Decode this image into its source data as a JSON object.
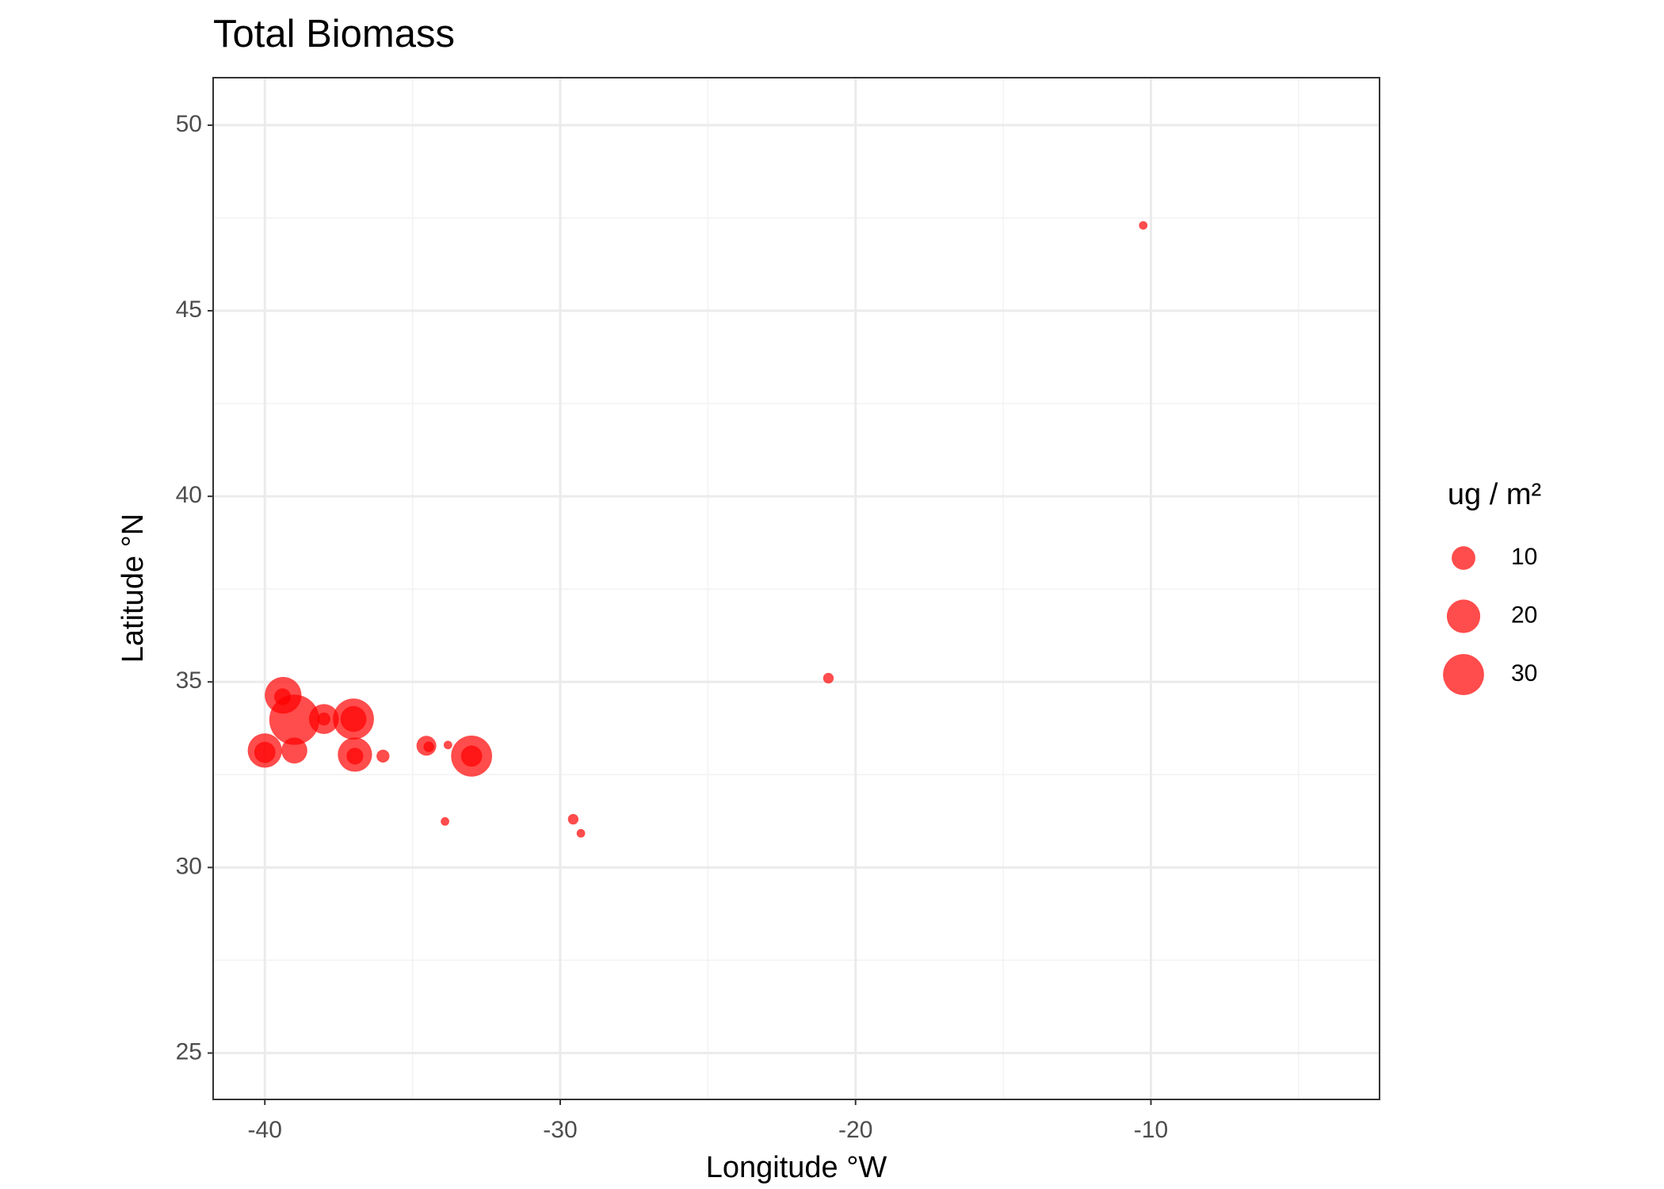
{
  "chart_data": {
    "type": "bubble",
    "title": "Total Biomass",
    "x_label": "Longitude °W",
    "y_label": "Latitude °N",
    "x": [
      -10.26,
      -20.92,
      -39.38,
      -39.4,
      -39.0,
      -38.0,
      -38.0,
      -37.0,
      -37.0,
      -40.0,
      -40.0,
      -39.0,
      -36.95,
      -36.95,
      -36.0,
      -34.53,
      -34.45,
      -33.8,
      -33.0,
      -33.0,
      -33.9,
      -29.56,
      -29.3
    ],
    "y": [
      47.3,
      35.1,
      34.64,
      34.6,
      33.98,
      34.0,
      34.0,
      34.0,
      34.0,
      33.15,
      33.1,
      33.15,
      33.04,
      33.0,
      33.0,
      33.28,
      33.25,
      33.3,
      33.0,
      33.0,
      31.24,
      31.3,
      30.92
    ],
    "sizes": [
      1.3,
      2,
      24,
      5,
      45,
      16,
      3,
      30,
      12,
      21,
      8,
      12,
      21,
      5,
      3,
      7,
      2,
      1.3,
      30,
      8,
      1.3,
      2,
      1.3
    ],
    "color": "#ff0000",
    "opacity": 0.7,
    "xlim": [
      -41.75,
      -2.26
    ],
    "ylim": [
      23.75,
      51.28
    ],
    "xticks": [
      -40,
      -30,
      -20,
      -10
    ],
    "yticks": [
      25,
      30,
      35,
      40,
      45,
      50
    ],
    "grid": true,
    "minor_grid": true,
    "legend": {
      "title": "ug / m²",
      "sizes": [
        10,
        20,
        30
      ],
      "position": "right"
    }
  }
}
